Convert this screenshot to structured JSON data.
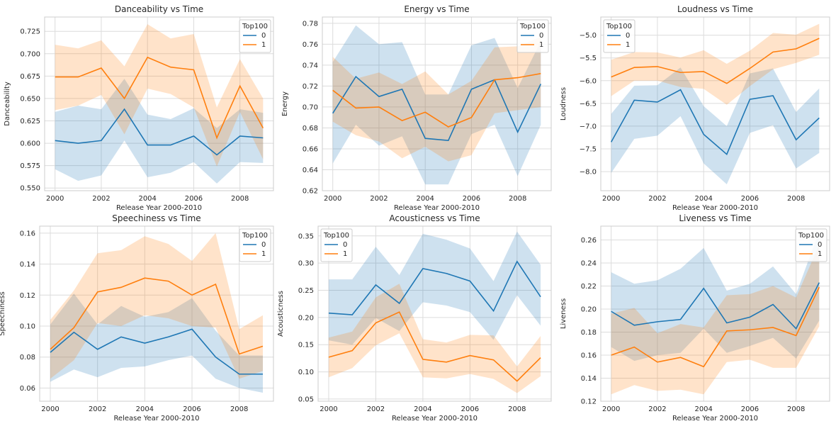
{
  "figure": {
    "legend_title": "Top100",
    "legend_labels": [
      "0",
      "1"
    ],
    "series_colors": [
      "#1f77b4",
      "#ff7f0e"
    ],
    "band_colors": [
      "#1f77b4",
      "#ff7f0e"
    ],
    "background": "#ffffff",
    "grid_color": "#dcdcdc",
    "grid": true
  },
  "chart_data": [
    {
      "type": "line",
      "title": "Danceability vs Time",
      "xlabel": "Release Year 2000-2010",
      "ylabel": "Danceability",
      "x": [
        2000,
        2001,
        2002,
        2003,
        2004,
        2005,
        2006,
        2007,
        2008,
        2009
      ],
      "xlim": [
        1999.55,
        2009.45
      ],
      "xticks": [
        "2000",
        "2002",
        "2004",
        "2006",
        "2008"
      ],
      "ylim": [
        0.547,
        0.741
      ],
      "yticks": [
        "0.550",
        "0.575",
        "0.600",
        "0.625",
        "0.650",
        "0.675",
        "0.700",
        "0.725"
      ],
      "legend_position": "top-right",
      "series": [
        {
          "name": "0",
          "values": [
            0.603,
            0.6,
            0.603,
            0.638,
            0.598,
            0.598,
            0.608,
            0.587,
            0.608,
            0.606
          ],
          "lower": [
            0.571,
            0.558,
            0.564,
            0.603,
            0.562,
            0.567,
            0.579,
            0.555,
            0.579,
            0.578
          ],
          "upper": [
            0.635,
            0.642,
            0.638,
            0.672,
            0.632,
            0.627,
            0.639,
            0.617,
            0.638,
            0.634
          ]
        },
        {
          "name": "1",
          "values": [
            0.674,
            0.674,
            0.684,
            0.65,
            0.696,
            0.685,
            0.682,
            0.606,
            0.664,
            0.617
          ],
          "lower": [
            0.637,
            0.642,
            0.654,
            0.61,
            0.661,
            0.655,
            0.64,
            0.574,
            0.635,
            0.582
          ],
          "upper": [
            0.71,
            0.706,
            0.715,
            0.686,
            0.733,
            0.717,
            0.722,
            0.64,
            0.694,
            0.65
          ]
        }
      ]
    },
    {
      "type": "line",
      "title": "Energy vs Time",
      "xlabel": "Release Year 2000-2010",
      "ylabel": "Energy",
      "x": [
        2000,
        2001,
        2002,
        2003,
        2004,
        2005,
        2006,
        2007,
        2008,
        2009
      ],
      "xlim": [
        1999.55,
        2009.45
      ],
      "xticks": [
        "2000",
        "2002",
        "2004",
        "2006",
        "2008"
      ],
      "ylim": [
        0.62,
        0.786
      ],
      "yticks": [
        "0.62",
        "0.64",
        "0.66",
        "0.68",
        "0.70",
        "0.72",
        "0.74",
        "0.76",
        "0.78"
      ],
      "legend_position": "top-right",
      "series": [
        {
          "name": "0",
          "values": [
            0.694,
            0.729,
            0.71,
            0.717,
            0.67,
            0.668,
            0.717,
            0.726,
            0.676,
            0.722
          ],
          "lower": [
            0.646,
            0.683,
            0.663,
            0.672,
            0.626,
            0.626,
            0.674,
            0.683,
            0.634,
            0.683
          ],
          "upper": [
            0.743,
            0.778,
            0.76,
            0.762,
            0.712,
            0.712,
            0.759,
            0.766,
            0.718,
            0.763
          ]
        },
        {
          "name": "1",
          "values": [
            0.716,
            0.699,
            0.7,
            0.687,
            0.695,
            0.681,
            0.69,
            0.726,
            0.728,
            0.732
          ],
          "lower": [
            0.686,
            0.673,
            0.667,
            0.651,
            0.662,
            0.648,
            0.654,
            0.694,
            0.697,
            0.7
          ],
          "upper": [
            0.748,
            0.727,
            0.733,
            0.722,
            0.734,
            0.712,
            0.725,
            0.757,
            0.758,
            0.767
          ]
        }
      ]
    },
    {
      "type": "line",
      "title": "Loudness vs Time",
      "xlabel": "Release Year 2000-2010",
      "ylabel": "Loudness",
      "x": [
        2000,
        2001,
        2002,
        2003,
        2004,
        2005,
        2006,
        2007,
        2008,
        2009
      ],
      "xlim": [
        1999.55,
        2009.45
      ],
      "xticks": [
        "2000",
        "2002",
        "2004",
        "2006",
        "2008"
      ],
      "ylim": [
        -8.42,
        -4.6
      ],
      "yticks": [
        "−8.0",
        "−7.5",
        "−7.0",
        "−6.5",
        "−6.0",
        "−5.5",
        "−5.0"
      ],
      "legend_position": "top-left",
      "series": [
        {
          "name": "0",
          "values": [
            -7.35,
            -6.43,
            -6.47,
            -6.2,
            -7.18,
            -7.62,
            -6.41,
            -6.33,
            -7.3,
            -6.82
          ],
          "lower": [
            -8.03,
            -7.28,
            -7.21,
            -6.78,
            -7.82,
            -8.28,
            -7.15,
            -6.98,
            -7.93,
            -7.59
          ],
          "upper": [
            -6.73,
            -6.11,
            -6.1,
            -5.71,
            -6.56,
            -7.0,
            -5.84,
            -5.73,
            -6.69,
            -6.17
          ]
        },
        {
          "name": "1",
          "values": [
            -5.92,
            -5.71,
            -5.69,
            -5.82,
            -5.8,
            -6.06,
            -5.73,
            -5.37,
            -5.3,
            -5.07
          ],
          "lower": [
            -6.34,
            -6.0,
            -6.0,
            -6.14,
            -6.18,
            -6.53,
            -6.12,
            -5.75,
            -5.61,
            -5.43
          ],
          "upper": [
            -5.54,
            -5.37,
            -5.38,
            -5.49,
            -5.33,
            -5.63,
            -5.34,
            -4.95,
            -4.99,
            -4.75
          ]
        }
      ]
    },
    {
      "type": "line",
      "title": "Speechiness vs Time",
      "xlabel": "Release Year 2000-2010",
      "ylabel": "Speechiness",
      "x": [
        2000,
        2001,
        2002,
        2003,
        2004,
        2005,
        2006,
        2007,
        2008,
        2009
      ],
      "xlim": [
        1999.55,
        2009.45
      ],
      "xticks": [
        "2000",
        "2002",
        "2004",
        "2006",
        "2008"
      ],
      "ylim": [
        0.0515,
        0.1645
      ],
      "yticks": [
        "0.06",
        "0.08",
        "0.10",
        "0.12",
        "0.14",
        "0.16"
      ],
      "legend_position": "top-right",
      "series": [
        {
          "name": "0",
          "values": [
            0.083,
            0.096,
            0.085,
            0.093,
            0.089,
            0.093,
            0.098,
            0.08,
            0.069,
            0.069
          ],
          "lower": [
            0.064,
            0.072,
            0.067,
            0.073,
            0.074,
            0.078,
            0.081,
            0.066,
            0.06,
            0.057
          ],
          "upper": [
            0.101,
            0.121,
            0.101,
            0.113,
            0.106,
            0.109,
            0.118,
            0.097,
            0.081,
            0.081
          ]
        },
        {
          "name": "1",
          "values": [
            0.085,
            0.099,
            0.122,
            0.125,
            0.131,
            0.129,
            0.12,
            0.127,
            0.082,
            0.087
          ],
          "lower": [
            0.066,
            0.078,
            0.102,
            0.1,
            0.107,
            0.105,
            0.1,
            0.099,
            0.066,
            0.071
          ],
          "upper": [
            0.104,
            0.123,
            0.147,
            0.149,
            0.158,
            0.153,
            0.142,
            0.16,
            0.098,
            0.107
          ]
        }
      ]
    },
    {
      "type": "line",
      "title": "Acousticness vs Time",
      "xlabel": "Release Year 2000-2010",
      "ylabel": "Acousticness",
      "x": [
        2000,
        2001,
        2002,
        2003,
        2004,
        2005,
        2006,
        2007,
        2008,
        2009
      ],
      "xlim": [
        1999.55,
        2009.45
      ],
      "xticks": [
        "2000",
        "2002",
        "2004",
        "2006",
        "2008"
      ],
      "ylim": [
        0.046,
        0.368
      ],
      "yticks": [
        "0.05",
        "0.10",
        "0.15",
        "0.20",
        "0.25",
        "0.30",
        "0.35"
      ],
      "legend_position": "top-left",
      "series": [
        {
          "name": "0",
          "values": [
            0.208,
            0.205,
            0.26,
            0.226,
            0.29,
            0.281,
            0.267,
            0.212,
            0.303,
            0.238
          ],
          "lower": [
            0.158,
            0.15,
            0.199,
            0.175,
            0.228,
            0.222,
            0.21,
            0.159,
            0.241,
            0.185
          ],
          "upper": [
            0.27,
            0.27,
            0.33,
            0.278,
            0.354,
            0.343,
            0.327,
            0.267,
            0.358,
            0.297
          ]
        },
        {
          "name": "1",
          "values": [
            0.127,
            0.139,
            0.19,
            0.21,
            0.123,
            0.118,
            0.13,
            0.122,
            0.083,
            0.126
          ],
          "lower": [
            0.09,
            0.107,
            0.149,
            0.171,
            0.09,
            0.088,
            0.096,
            0.087,
            0.061,
            0.092
          ],
          "upper": [
            0.163,
            0.174,
            0.237,
            0.262,
            0.16,
            0.154,
            0.168,
            0.167,
            0.11,
            0.166
          ]
        }
      ]
    },
    {
      "type": "line",
      "title": "Liveness vs Time",
      "xlabel": "Release Year 2000-2010",
      "ylabel": "Liveness",
      "x": [
        2000,
        2001,
        2002,
        2003,
        2004,
        2005,
        2006,
        2007,
        2008,
        2009
      ],
      "xlim": [
        1999.55,
        2009.45
      ],
      "xticks": [
        "2000",
        "2002",
        "2004",
        "2006",
        "2008"
      ],
      "ylim": [
        0.12,
        0.272
      ],
      "yticks": [
        "0.12",
        "0.14",
        "0.16",
        "0.18",
        "0.20",
        "0.22",
        "0.24",
        "0.26"
      ],
      "legend_position": "top-right",
      "series": [
        {
          "name": "0",
          "values": [
            0.198,
            0.186,
            0.189,
            0.191,
            0.218,
            0.188,
            0.193,
            0.204,
            0.183,
            0.223
          ],
          "lower": [
            0.167,
            0.155,
            0.16,
            0.162,
            0.183,
            0.162,
            0.168,
            0.175,
            0.157,
            0.19
          ],
          "upper": [
            0.232,
            0.222,
            0.225,
            0.235,
            0.253,
            0.216,
            0.222,
            0.237,
            0.213,
            0.268
          ]
        },
        {
          "name": "1",
          "values": [
            0.16,
            0.167,
            0.154,
            0.158,
            0.15,
            0.181,
            0.182,
            0.184,
            0.177,
            0.219
          ],
          "lower": [
            0.126,
            0.134,
            0.129,
            0.13,
            0.126,
            0.154,
            0.156,
            0.149,
            0.149,
            0.185
          ],
          "upper": [
            0.196,
            0.201,
            0.179,
            0.187,
            0.184,
            0.212,
            0.213,
            0.22,
            0.21,
            0.256
          ]
        }
      ]
    }
  ]
}
